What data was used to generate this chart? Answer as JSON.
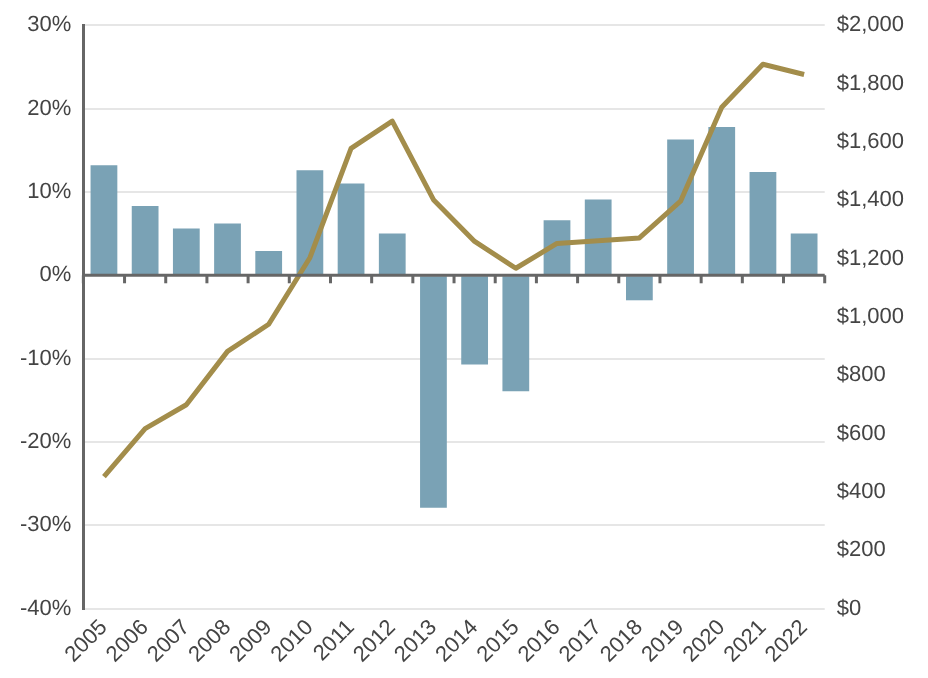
{
  "chart_data": {
    "type": "bar",
    "categories": [
      "2005",
      "2006",
      "2007",
      "2008",
      "2009",
      "2010",
      "2011",
      "2012",
      "2013",
      "2014",
      "2015",
      "2016",
      "2017",
      "2018",
      "2019",
      "2020",
      "2021",
      "2022"
    ],
    "series": [
      {
        "color": "#7aa2b5",
        "values": [
          13.2,
          8.3,
          5.6,
          6.2,
          2.9,
          12.6,
          11.0,
          5.0,
          -27.9,
          -10.7,
          -13.9,
          6.6,
          9.1,
          -3.0,
          16.3,
          17.8,
          12.4,
          5.0
        ]
      },
      {
        "type": "line",
        "axis": "y2",
        "color": "#a38d4b",
        "values": [
          453,
          617,
          699,
          882,
          975,
          1203,
          1578,
          1671,
          1402,
          1259,
          1167,
          1252,
          1261,
          1271,
          1397,
          1719,
          1866,
          1831
        ]
      }
    ],
    "ylim": [
      -40,
      30
    ],
    "yticks": [
      {
        "value": -40,
        "label": "-40%"
      },
      {
        "value": -30,
        "label": "-30%"
      },
      {
        "value": -20,
        "label": "-20%"
      },
      {
        "value": -10,
        "label": "-10%"
      },
      {
        "value": 0,
        "label": "0%"
      },
      {
        "value": 10,
        "label": "10%"
      },
      {
        "value": 20,
        "label": "20%"
      },
      {
        "value": 30,
        "label": "30%"
      }
    ],
    "y2lim": [
      0,
      2000
    ],
    "y2ticks": [
      {
        "value": 0,
        "label": "$0"
      },
      {
        "value": 200,
        "label": "$200"
      },
      {
        "value": 400,
        "label": "$400"
      },
      {
        "value": 600,
        "label": "$600"
      },
      {
        "value": 800,
        "label": "$800"
      },
      {
        "value": 1000,
        "label": "$1,000"
      },
      {
        "value": 1200,
        "label": "$1,200"
      },
      {
        "value": 1400,
        "label": "$1,400"
      },
      {
        "value": 1600,
        "label": "$1,600"
      },
      {
        "value": 1800,
        "label": "$1,800"
      },
      {
        "value": 2000,
        "label": "$2,000"
      }
    ],
    "grid": "y",
    "legend": false,
    "marker": "none",
    "line_style": "solid"
  }
}
